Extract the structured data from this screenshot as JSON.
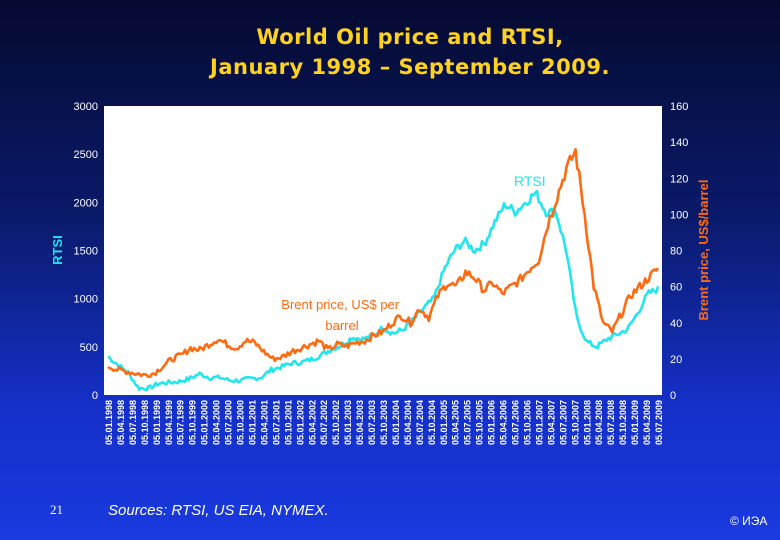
{
  "chart_data": {
    "type": "line",
    "title_line1": "World Oil price and RTSI,",
    "title_line2": "January 1998 – September 2009.",
    "y_left_label": "RTSI",
    "y_right_label": "Brent price, US$/barrel",
    "y_left_ticks": [
      "0",
      "500",
      "1000",
      "1500",
      "2000",
      "2500",
      "3000"
    ],
    "y_right_ticks": [
      "0",
      "20",
      "40",
      "60",
      "80",
      "100",
      "120",
      "140",
      "160"
    ],
    "y_left_range": [
      0,
      3000
    ],
    "y_right_range": [
      0,
      160
    ],
    "x_ticks": [
      "05.01.1998",
      "05.04.1998",
      "05.07.1998",
      "05.10.1998",
      "05.01.1999",
      "05.04.1999",
      "05.07.1999",
      "05.10.1999",
      "05.01.2000",
      "05.04.2000",
      "05.07.2000",
      "05.10.2000",
      "05.01.2001",
      "05.04.2001",
      "05.07.2001",
      "05.10.2001",
      "05.01.2002",
      "05.04.2002",
      "05.07.2002",
      "05.10.2002",
      "05.01.2003",
      "05.04.2003",
      "05.07.2003",
      "05.10.2003",
      "05.01.2004",
      "05.04.2004",
      "05.07.2004",
      "05.10.2004",
      "05.01.2005",
      "05.04.2005",
      "05.07.2005",
      "05.10.2005",
      "05.01.2006",
      "05.04.2006",
      "05.07.2006",
      "05.10.2006",
      "05.01.2007",
      "05.04.2007",
      "05.07.2007",
      "05.10.2007",
      "05.01.2008",
      "05.04.2008",
      "05.07.2008",
      "05.10.2008",
      "05.01.2009",
      "05.04.2009",
      "05.07.2009"
    ],
    "grid": false,
    "series": [
      {
        "name": "RTSI",
        "axis": "left",
        "color": "#22e5ee",
        "label_text": "RTSI",
        "values": [
          400,
          310,
          230,
          70,
          70,
          120,
          130,
          140,
          170,
          220,
          180,
          180,
          150,
          150,
          170,
          180,
          260,
          290,
          330,
          340,
          370,
          420,
          480,
          520,
          600,
          580,
          610,
          700,
          640,
          680,
          780,
          900,
          1000,
          1300,
          1500,
          1600,
          1500,
          1580,
          1800,
          1980,
          1900,
          2000,
          2100,
          1900,
          1900,
          1500,
          800,
          550,
          500,
          580,
          630,
          680,
          850,
          1050,
          1100
        ]
      },
      {
        "name": "Brent price, US$ per barrel",
        "axis": "right",
        "color": "#ff6a10",
        "label_text": "Brent price, US$ per barrel",
        "values": [
          16,
          14,
          13,
          12,
          11,
          12,
          16,
          20,
          22,
          26,
          25,
          28,
          31,
          28,
          26,
          30,
          29,
          24,
          20,
          21,
          24,
          26,
          28,
          30,
          25,
          28,
          27,
          29,
          30,
          33,
          35,
          40,
          44,
          40,
          48,
          43,
          55,
          62,
          60,
          68,
          65,
          58,
          62,
          56,
          60,
          64,
          70,
          75,
          95,
          110,
          125,
          135,
          100,
          60,
          40,
          35,
          45,
          55,
          60,
          65,
          70
        ]
      }
    ]
  },
  "footer": {
    "page_number": "21",
    "sources": "Sources: RTSI, US EIA, NYMEX.",
    "copyright": "© ИЭА"
  }
}
